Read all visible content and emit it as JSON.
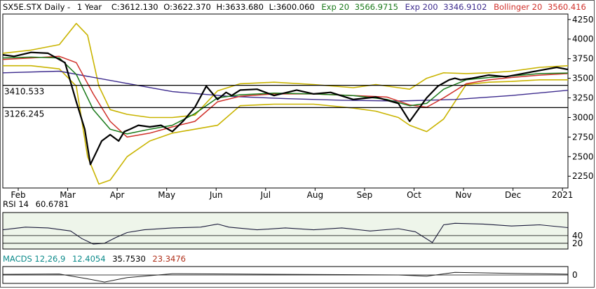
{
  "chart_data": [
    {
      "type": "line",
      "header": {
        "symbol": "SX5E.STX Daily -",
        "range": "1 Year",
        "close": "C:3612.130",
        "open": "O:3622.370",
        "high": "H:3633.680",
        "low": "L:3600.060",
        "exp20_label": "Exp 20",
        "exp20_value": "3566.9715",
        "exp200_label": "Exp 200",
        "exp200_value": "3346.9102",
        "boll_label": "Bollinger 20",
        "boll_value": "3560.416"
      },
      "x_ticks": [
        "Feb",
        "Mar",
        "Apr",
        "May",
        "Jun",
        "Jul",
        "Aug",
        "Sep",
        "Oct",
        "Nov",
        "Dec",
        "2021"
      ],
      "y_ticks": [
        2250,
        2500,
        2750,
        3000,
        3250,
        3500,
        3750,
        4000,
        4250
      ],
      "ylim": [
        2100,
        4320
      ],
      "hlines": [
        {
          "label": "3410.533",
          "value": 3410.533
        },
        {
          "label": "3126.245",
          "value": 3126.245
        }
      ],
      "colors": {
        "price": "#000000",
        "exp20": "#1a7a1a",
        "exp200": "#3d2b8e",
        "boll_mid": "#d0302a",
        "boll_band": "#c9b400",
        "hline": "#000000"
      },
      "series": [
        {
          "name": "price",
          "x": [
            0,
            0.02,
            0.05,
            0.08,
            0.11,
            0.13,
            0.145,
            0.155,
            0.165,
            0.175,
            0.19,
            0.205,
            0.215,
            0.225,
            0.24,
            0.26,
            0.28,
            0.3,
            0.32,
            0.34,
            0.36,
            0.38,
            0.395,
            0.405,
            0.42,
            0.45,
            0.48,
            0.52,
            0.55,
            0.58,
            0.62,
            0.66,
            0.7,
            0.72,
            0.75,
            0.77,
            0.79,
            0.8,
            0.81,
            0.83,
            0.86,
            0.89,
            0.92,
            0.95,
            0.98,
            1.0
          ],
          "y": [
            3800,
            3780,
            3830,
            3820,
            3700,
            3200,
            2850,
            2400,
            2550,
            2700,
            2780,
            2700,
            2820,
            2850,
            2900,
            2880,
            2900,
            2820,
            2960,
            3130,
            3400,
            3230,
            3320,
            3280,
            3350,
            3360,
            3280,
            3350,
            3300,
            3320,
            3230,
            3260,
            3180,
            2950,
            3250,
            3400,
            3480,
            3500,
            3480,
            3500,
            3540,
            3520,
            3560,
            3600,
            3640,
            3612
          ]
        },
        {
          "name": "Exp 20",
          "x": [
            0,
            0.05,
            0.1,
            0.13,
            0.16,
            0.19,
            0.22,
            0.26,
            0.3,
            0.34,
            0.38,
            0.42,
            0.48,
            0.55,
            0.62,
            0.68,
            0.72,
            0.75,
            0.78,
            0.82,
            0.86,
            0.9,
            0.95,
            1.0
          ],
          "y": [
            3760,
            3770,
            3760,
            3550,
            3100,
            2850,
            2790,
            2850,
            2900,
            3050,
            3250,
            3290,
            3310,
            3300,
            3280,
            3230,
            3150,
            3180,
            3360,
            3480,
            3510,
            3530,
            3560,
            3567
          ]
        },
        {
          "name": "Bollinger 20",
          "x": [
            0,
            0.05,
            0.1,
            0.13,
            0.16,
            0.19,
            0.22,
            0.26,
            0.3,
            0.34,
            0.38,
            0.42,
            0.48,
            0.55,
            0.62,
            0.68,
            0.72,
            0.75,
            0.78,
            0.82,
            0.86,
            0.9,
            0.95,
            1.0
          ],
          "y": [
            3740,
            3760,
            3780,
            3700,
            3300,
            2950,
            2750,
            2800,
            2880,
            2950,
            3200,
            3270,
            3300,
            3300,
            3280,
            3260,
            3160,
            3130,
            3250,
            3430,
            3480,
            3510,
            3540,
            3560
          ]
        },
        {
          "name": "Exp 200",
          "x": [
            0,
            0.1,
            0.2,
            0.3,
            0.4,
            0.5,
            0.6,
            0.7,
            0.8,
            0.9,
            1.0
          ],
          "y": [
            3570,
            3590,
            3460,
            3330,
            3270,
            3240,
            3220,
            3210,
            3230,
            3280,
            3347
          ]
        },
        {
          "name": "upper band",
          "x": [
            0,
            0.05,
            0.1,
            0.13,
            0.15,
            0.17,
            0.19,
            0.22,
            0.26,
            0.3,
            0.34,
            0.38,
            0.42,
            0.48,
            0.55,
            0.62,
            0.66,
            0.7,
            0.72,
            0.75,
            0.78,
            0.82,
            0.86,
            0.9,
            0.95,
            1.0
          ],
          "y": [
            3820,
            3860,
            3930,
            4200,
            4050,
            3400,
            3100,
            3040,
            3000,
            3000,
            3030,
            3340,
            3430,
            3450,
            3420,
            3380,
            3420,
            3380,
            3360,
            3500,
            3570,
            3560,
            3570,
            3590,
            3640,
            3660
          ]
        },
        {
          "name": "lower band",
          "x": [
            0,
            0.05,
            0.1,
            0.13,
            0.15,
            0.17,
            0.19,
            0.22,
            0.26,
            0.3,
            0.34,
            0.38,
            0.42,
            0.48,
            0.55,
            0.62,
            0.66,
            0.7,
            0.72,
            0.75,
            0.78,
            0.82,
            0.86,
            0.9,
            0.95,
            1.0
          ],
          "y": [
            3660,
            3660,
            3620,
            3400,
            2500,
            2150,
            2200,
            2500,
            2700,
            2800,
            2850,
            2900,
            3150,
            3170,
            3170,
            3120,
            3080,
            3000,
            2900,
            2820,
            2980,
            3420,
            3450,
            3460,
            3480,
            3480
          ]
        }
      ]
    },
    {
      "type": "line",
      "header": {
        "label": "RSI 14",
        "value": "60.6781"
      },
      "y_ticks": [
        20,
        40
      ],
      "ylim": [
        5,
        100
      ],
      "series": [
        {
          "name": "RSI 14",
          "x": [
            0,
            0.04,
            0.08,
            0.12,
            0.14,
            0.16,
            0.18,
            0.2,
            0.22,
            0.25,
            0.3,
            0.35,
            0.38,
            0.4,
            0.45,
            0.5,
            0.55,
            0.6,
            0.65,
            0.7,
            0.73,
            0.76,
            0.78,
            0.8,
            0.85,
            0.9,
            0.95,
            1.0
          ],
          "y": [
            55,
            62,
            60,
            52,
            32,
            18,
            20,
            35,
            48,
            55,
            60,
            62,
            70,
            62,
            55,
            60,
            55,
            60,
            52,
            58,
            50,
            22,
            68,
            72,
            70,
            65,
            68,
            60.7
          ]
        }
      ]
    },
    {
      "type": "line",
      "header": {
        "label": "MACDS 12,26,9",
        "value1": "12.4054",
        "value2": "35.7530",
        "value3": "23.3476"
      },
      "y_ticks": [
        0
      ],
      "series": [
        {
          "name": "MACD",
          "x": [
            0,
            0.1,
            0.15,
            0.18,
            0.22,
            0.3,
            0.4,
            0.5,
            0.6,
            0.7,
            0.75,
            0.8,
            0.9,
            1.0
          ],
          "y": [
            10,
            15,
            -60,
            -110,
            -40,
            20,
            15,
            10,
            5,
            0,
            -20,
            40,
            25,
            12.4
          ]
        }
      ]
    }
  ]
}
